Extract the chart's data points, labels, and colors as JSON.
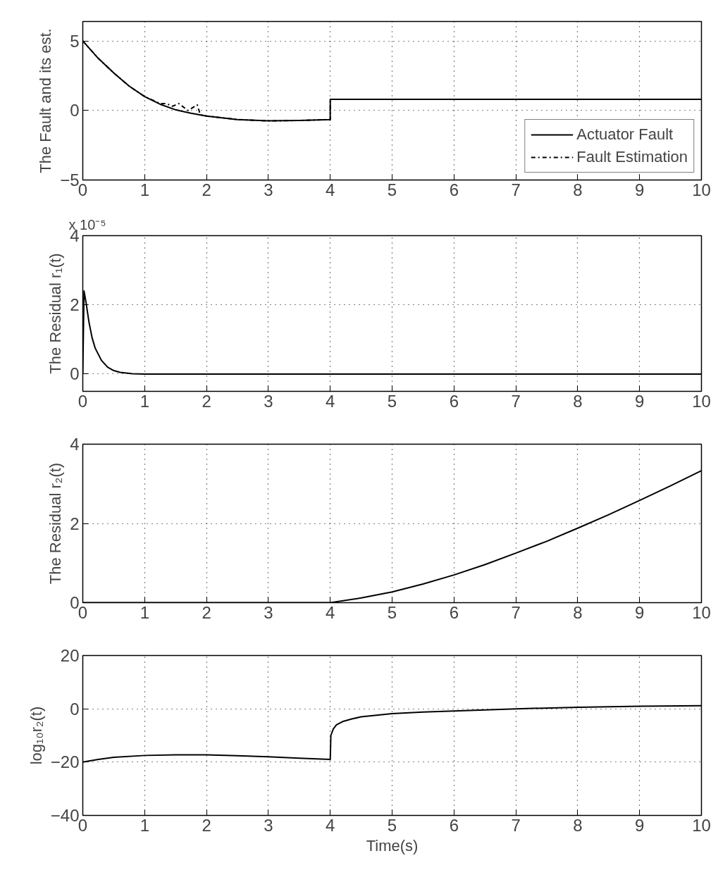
{
  "chart_data": [
    {
      "type": "line",
      "ylabel": "The Fault and its est.",
      "xlim": [
        0,
        10
      ],
      "ylim": [
        -5,
        6.4
      ],
      "xticks": [
        0,
        1,
        2,
        3,
        4,
        5,
        6,
        7,
        8,
        9,
        10
      ],
      "yticks": [
        -5,
        0,
        5
      ],
      "grid": true,
      "legend": "bottom right",
      "series": [
        {
          "name": "Actuator Fault",
          "color": "#000000",
          "line_style": "solid",
          "x": [
            0,
            0.25,
            0.5,
            0.75,
            1,
            1.25,
            1.5,
            1.75,
            2,
            2.5,
            3,
            3.5,
            4,
            4,
            10
          ],
          "values": [
            5,
            3.75,
            2.7,
            1.75,
            1.0,
            0.45,
            0.05,
            -0.2,
            -0.4,
            -0.65,
            -0.75,
            -0.72,
            -0.65,
            0.8,
            0.8
          ]
        },
        {
          "name": "Fault Estimation",
          "color": "#000000",
          "line_style": "dashdot",
          "x": [
            0,
            0.25,
            0.5,
            0.75,
            1,
            1.25,
            1.35,
            1.45,
            1.55,
            1.7,
            1.85,
            1.9,
            2,
            2.5,
            3,
            3.5,
            4,
            4,
            10
          ],
          "values": [
            5,
            3.75,
            2.7,
            1.75,
            1.0,
            0.5,
            0.5,
            0.3,
            0.5,
            0.0,
            0.4,
            -0.3,
            -0.4,
            -0.65,
            -0.75,
            -0.72,
            -0.65,
            0.8,
            0.8
          ]
        }
      ]
    },
    {
      "type": "line",
      "ylabel": "The Residual r₁(t)",
      "annotations": [
        "x 10⁻⁵"
      ],
      "xlim": [
        0,
        10
      ],
      "ylim": [
        -0.5,
        4
      ],
      "xticks": [
        0,
        1,
        2,
        3,
        4,
        5,
        6,
        7,
        8,
        9,
        10
      ],
      "yticks": [
        0,
        2,
        4
      ],
      "grid": true,
      "series": [
        {
          "color": "#000000",
          "line_style": "solid",
          "x": [
            0,
            0.02,
            0.05,
            0.1,
            0.15,
            0.2,
            0.3,
            0.4,
            0.5,
            0.6,
            0.8,
            1,
            10
          ],
          "values": [
            0,
            2.4,
            2.1,
            1.5,
            1.05,
            0.75,
            0.4,
            0.2,
            0.1,
            0.05,
            0.01,
            0,
            0
          ]
        }
      ]
    },
    {
      "type": "line",
      "ylabel": "The Residual r₂(t)",
      "xlim": [
        0,
        10
      ],
      "ylim": [
        0,
        4
      ],
      "xticks": [
        0,
        1,
        2,
        3,
        4,
        5,
        6,
        7,
        8,
        9,
        10
      ],
      "yticks": [
        0,
        2,
        4
      ],
      "grid": true,
      "series": [
        {
          "color": "#000000",
          "line_style": "solid",
          "x": [
            0,
            4,
            4.5,
            5,
            5.5,
            6,
            6.5,
            7,
            7.5,
            8,
            8.5,
            9,
            9.5,
            10
          ],
          "values": [
            0,
            0,
            0.12,
            0.27,
            0.47,
            0.7,
            0.96,
            1.25,
            1.55,
            1.88,
            2.22,
            2.58,
            2.95,
            3.33
          ]
        }
      ]
    },
    {
      "type": "line",
      "ylabel": "log₁₀r₂(t)",
      "xlabel": "Time(s)",
      "xlim": [
        0,
        10
      ],
      "ylim": [
        -40,
        20
      ],
      "xticks": [
        0,
        1,
        2,
        3,
        4,
        5,
        6,
        7,
        8,
        9,
        10
      ],
      "yticks": [
        -40,
        -20,
        0,
        20
      ],
      "grid": true,
      "series": [
        {
          "color": "#000000",
          "line_style": "solid",
          "x": [
            0,
            0.25,
            0.5,
            1,
            1.5,
            2,
            2.5,
            3,
            3.5,
            4,
            4.01,
            4.05,
            4.1,
            4.2,
            4.35,
            4.5,
            5,
            5.5,
            6,
            7,
            8,
            9,
            10
          ],
          "values": [
            -20,
            -19,
            -18.2,
            -17.5,
            -17.3,
            -17.3,
            -17.6,
            -18,
            -18.5,
            -19,
            -10,
            -7.5,
            -6,
            -4.8,
            -3.8,
            -3,
            -1.8,
            -1.2,
            -0.8,
            0,
            0.6,
            1,
            1.2
          ]
        }
      ]
    }
  ]
}
